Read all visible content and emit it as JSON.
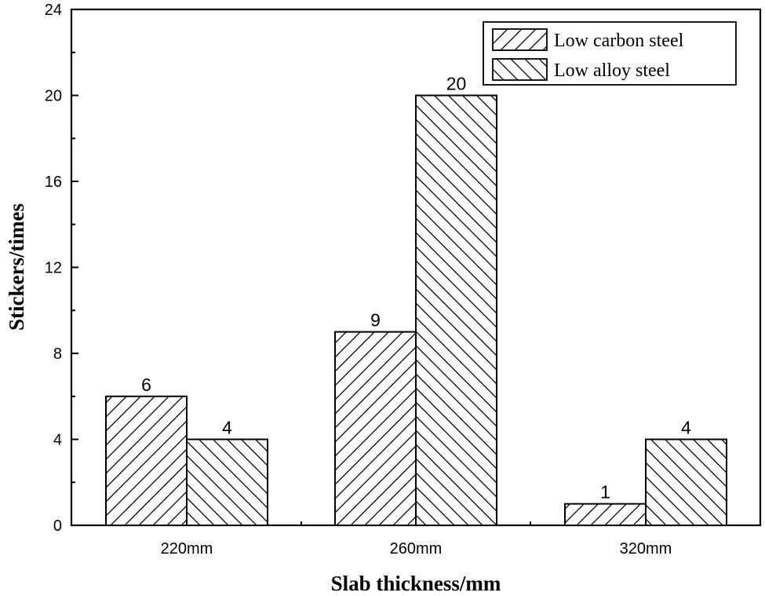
{
  "chart_data": {
    "type": "bar",
    "title": "",
    "xlabel": "Slab thickness/mm",
    "ylabel": "Stickers/times",
    "categories": [
      "220mm",
      "260mm",
      "320mm"
    ],
    "series": [
      {
        "name": "Low carbon steel",
        "values": [
          6,
          9,
          1
        ],
        "pattern": "forward-hatch"
      },
      {
        "name": "Low alloy  steel",
        "values": [
          4,
          20,
          4
        ],
        "pattern": "back-hatch"
      }
    ],
    "ylim": [
      0,
      24
    ],
    "yticks": [
      0,
      4,
      8,
      12,
      16,
      20,
      24
    ],
    "grid": false,
    "legend_position": "upper-right",
    "data_labels": true
  },
  "colors": {
    "line": "#000000",
    "background": "#ffffff"
  }
}
